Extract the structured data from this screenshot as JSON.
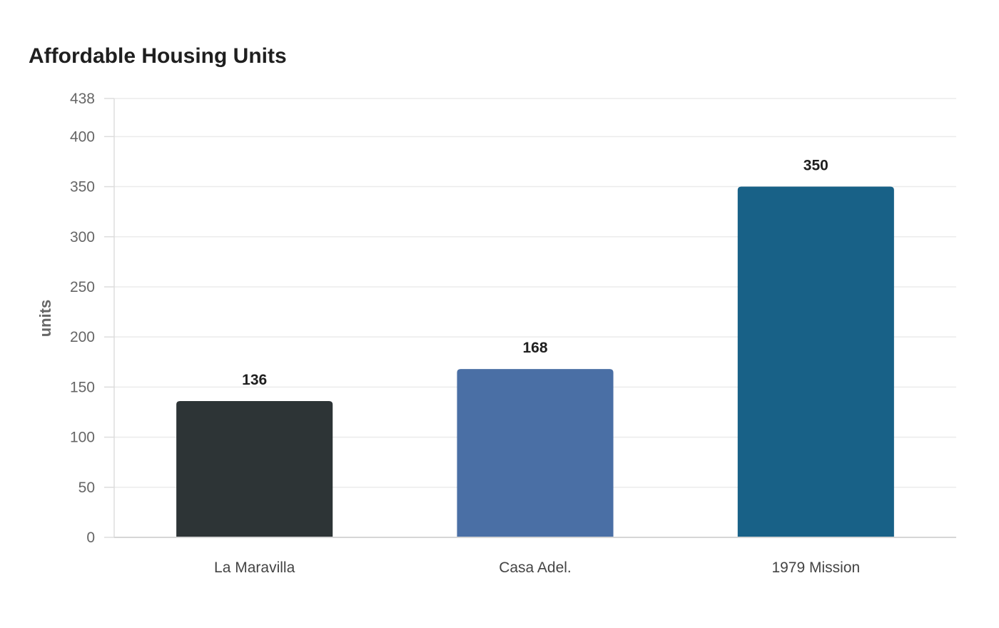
{
  "chart_data": {
    "type": "bar",
    "title": "Affordable Housing Units",
    "xlabel": "",
    "ylabel": "units",
    "categories": [
      "La Maravilla",
      "Casa Adel.",
      "1979 Mission"
    ],
    "values": [
      136,
      168,
      350
    ],
    "colors": [
      "#2d3436",
      "#4a6fa5",
      "#186187"
    ],
    "ylim": [
      0,
      438
    ],
    "yticks": [
      0,
      50,
      100,
      150,
      200,
      250,
      300,
      350,
      400,
      438
    ],
    "grid": true,
    "legend": "none"
  }
}
